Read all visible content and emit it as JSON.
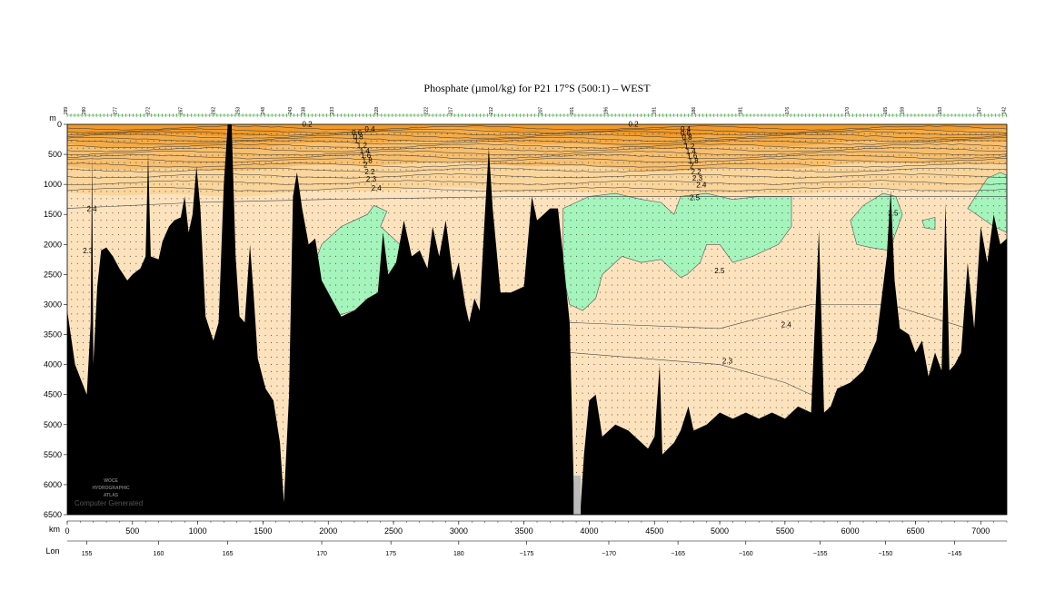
{
  "chart_data": {
    "type": "section",
    "title": "Phosphate (µmol/kg) for P21 17°S (500:1) – WEST",
    "y_axis": {
      "unit": "m",
      "range": [
        0,
        6500
      ],
      "ticks": [
        0,
        500,
        1000,
        1500,
        2000,
        2500,
        3000,
        3500,
        4000,
        4500,
        5000,
        5500,
        6000,
        6500
      ]
    },
    "x_axis_km": {
      "unit": "km",
      "range": [
        0,
        7200
      ],
      "ticks": [
        0,
        500,
        1000,
        1500,
        2000,
        2500,
        3000,
        3500,
        4000,
        4500,
        5000,
        5500,
        6000,
        6500,
        7000
      ]
    },
    "x_axis_lon": {
      "unit": "Lon",
      "ticks": [
        {
          "label": "155",
          "km": 150
        },
        {
          "label": "160",
          "km": 700
        },
        {
          "label": "165",
          "km": 1230
        },
        {
          "label": "170",
          "km": 1950
        },
        {
          "label": "175",
          "km": 2480
        },
        {
          "label": "180",
          "km": 3000
        },
        {
          "label": "−175",
          "km": 3520
        },
        {
          "label": "−170",
          "km": 4150
        },
        {
          "label": "−165",
          "km": 4680
        },
        {
          "label": "−160",
          "km": 5200
        },
        {
          "label": "−155",
          "km": 5770
        },
        {
          "label": "−150",
          "km": 6270
        },
        {
          "label": "−145",
          "km": 6800
        }
      ]
    },
    "stations": [
      {
        "label": "289",
        "km": 0
      },
      {
        "label": "280",
        "km": 140
      },
      {
        "label": "277",
        "km": 380
      },
      {
        "label": "272",
        "km": 630
      },
      {
        "label": "267",
        "km": 880
      },
      {
        "label": "262",
        "km": 1130
      },
      {
        "label": "253",
        "km": 1320
      },
      {
        "label": "248",
        "km": 1510
      },
      {
        "label": "243",
        "km": 1720
      },
      {
        "label": "238",
        "km": 1820
      },
      {
        "label": "233",
        "km": 2040
      },
      {
        "label": "228",
        "km": 2380
      },
      {
        "label": "222",
        "km": 2760
      },
      {
        "label": "217",
        "km": 2950
      },
      {
        "label": "212",
        "km": 3260
      },
      {
        "label": "207",
        "km": 3640
      },
      {
        "label": "201",
        "km": 3880
      },
      {
        "label": "196",
        "km": 4140
      },
      {
        "label": "191",
        "km": 4510
      },
      {
        "label": "186",
        "km": 4810
      },
      {
        "label": "181",
        "km": 5170
      },
      {
        "label": "176",
        "km": 5530
      },
      {
        "label": "170",
        "km": 5990
      },
      {
        "label": "165",
        "km": 6280
      },
      {
        "label": "159",
        "km": 6410
      },
      {
        "label": "153",
        "km": 6700
      },
      {
        "label": "147",
        "km": 7000
      },
      {
        "label": "142",
        "km": 7190
      }
    ],
    "contour_levels": [
      0.2,
      0.4,
      0.6,
      0.8,
      1.0,
      1.2,
      1.4,
      1.6,
      1.8,
      2.0,
      2.2,
      2.3,
      2.4,
      2.5
    ],
    "contour_labels": [
      {
        "text": "0.2",
        "km": 1800,
        "depth": 40
      },
      {
        "text": "0.4",
        "km": 2280,
        "depth": 120
      },
      {
        "text": "0.6",
        "km": 2180,
        "depth": 180
      },
      {
        "text": "0.8",
        "km": 2190,
        "depth": 250
      },
      {
        "text": "1",
        "km": 2200,
        "depth": 310
      },
      {
        "text": "1.2",
        "km": 2220,
        "depth": 390
      },
      {
        "text": "1.4",
        "km": 2240,
        "depth": 480
      },
      {
        "text": "1.6",
        "km": 2250,
        "depth": 560
      },
      {
        "text": "1.8",
        "km": 2260,
        "depth": 640
      },
      {
        "text": "2",
        "km": 2270,
        "depth": 720
      },
      {
        "text": "2.2",
        "km": 2280,
        "depth": 830
      },
      {
        "text": "2.3",
        "km": 2290,
        "depth": 950
      },
      {
        "text": "2.4",
        "km": 2330,
        "depth": 1100
      },
      {
        "text": "0.2",
        "km": 4300,
        "depth": 40
      },
      {
        "text": "0.4",
        "km": 4700,
        "depth": 120
      },
      {
        "text": "0.6",
        "km": 4700,
        "depth": 190
      },
      {
        "text": "0.8",
        "km": 4710,
        "depth": 260
      },
      {
        "text": "1",
        "km": 4720,
        "depth": 330
      },
      {
        "text": "1.2",
        "km": 4730,
        "depth": 410
      },
      {
        "text": "1.4",
        "km": 4740,
        "depth": 490
      },
      {
        "text": "1.6",
        "km": 4750,
        "depth": 570
      },
      {
        "text": "1.8",
        "km": 4760,
        "depth": 650
      },
      {
        "text": "2",
        "km": 4770,
        "depth": 730
      },
      {
        "text": "2.2",
        "km": 4780,
        "depth": 830
      },
      {
        "text": "2.3",
        "km": 4790,
        "depth": 940
      },
      {
        "text": "2.4",
        "km": 4820,
        "depth": 1050
      },
      {
        "text": "2.5",
        "km": 4770,
        "depth": 1260
      },
      {
        "text": "2.4",
        "km": 150,
        "depth": 1450
      },
      {
        "text": "2.3",
        "km": 120,
        "depth": 2150
      },
      {
        "text": "2.5",
        "km": 4960,
        "depth": 2480
      },
      {
        "text": "2.4",
        "km": 5470,
        "depth": 3380
      },
      {
        "text": "2.3",
        "km": 5020,
        "depth": 3980
      },
      {
        "text": "2.5",
        "km": 6290,
        "depth": 1520
      }
    ],
    "colors": {
      "band_0_0.4": "#f09a2a",
      "band_0.4_1.0": "#f4ac48",
      "band_1.0_1.8": "#f7bf6e",
      "band_1.8_2.4": "#fbd69c",
      "band_2.4_2.5": "#fde3bd",
      "band_above_2.5": "#a4f4bc",
      "bottom": "#000000"
    },
    "stamp_lines": [
      "WOCE",
      "HYDROGRAPHIC",
      "ATLAS"
    ],
    "stamp_caption": "Computer Generated"
  }
}
